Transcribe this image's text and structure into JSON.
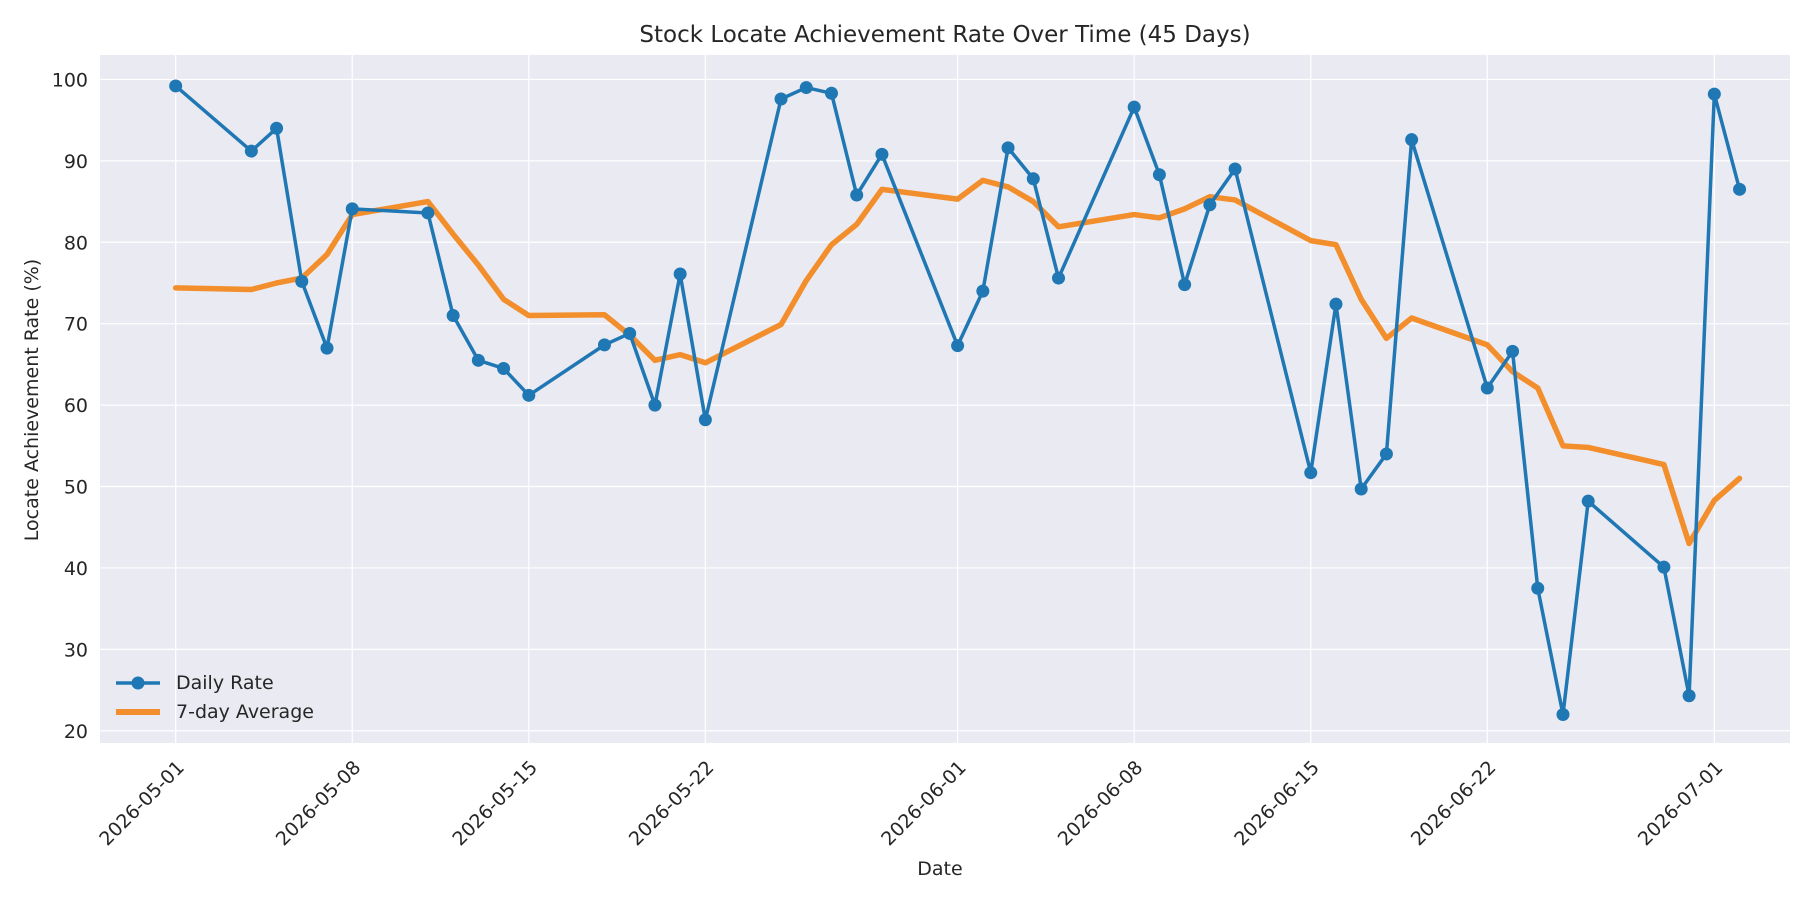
{
  "chart_data": {
    "type": "line",
    "title": "Stock Locate Achievement Rate Over Time (45 Days)",
    "xlabel": "Date",
    "ylabel": "Locate Achievement Rate (%)",
    "xlim": [
      "2026-04-28",
      "2026-07-04"
    ],
    "ylim": [
      18.5,
      103
    ],
    "grid": true,
    "legend_position": "lower-left",
    "x_ticks": [
      "2026-05-01",
      "2026-05-08",
      "2026-05-15",
      "2026-05-22",
      "2026-06-01",
      "2026-06-08",
      "2026-06-15",
      "2026-06-22",
      "2026-07-01"
    ],
    "y_ticks": [
      20,
      30,
      40,
      50,
      60,
      70,
      80,
      90,
      100
    ],
    "x": [
      "2026-05-01",
      "2026-05-04",
      "2026-05-05",
      "2026-05-06",
      "2026-05-07",
      "2026-05-08",
      "2026-05-11",
      "2026-05-12",
      "2026-05-13",
      "2026-05-14",
      "2026-05-15",
      "2026-05-18",
      "2026-05-19",
      "2026-05-20",
      "2026-05-21",
      "2026-05-22",
      "2026-05-25",
      "2026-05-26",
      "2026-05-27",
      "2026-05-28",
      "2026-05-29",
      "2026-06-01",
      "2026-06-02",
      "2026-06-03",
      "2026-06-04",
      "2026-06-05",
      "2026-06-08",
      "2026-06-09",
      "2026-06-10",
      "2026-06-11",
      "2026-06-12",
      "2026-06-15",
      "2026-06-16",
      "2026-06-17",
      "2026-06-18",
      "2026-06-19",
      "2026-06-22",
      "2026-06-23",
      "2026-06-24",
      "2026-06-25",
      "2026-06-26",
      "2026-06-29",
      "2026-06-30",
      "2026-07-01",
      "2026-07-02"
    ],
    "series": [
      {
        "name": "Daily Rate",
        "color": "#1f77b4",
        "values": [
          99.2,
          91.2,
          94.0,
          75.2,
          67.0,
          84.1,
          83.6,
          71.0,
          65.5,
          64.5,
          61.2,
          67.4,
          68.8,
          60.0,
          76.1,
          58.2,
          97.6,
          99.0,
          98.3,
          85.8,
          90.8,
          67.3,
          74.0,
          91.6,
          87.8,
          75.6,
          96.6,
          88.3,
          74.8,
          84.6,
          89.0,
          51.7,
          72.4,
          49.7,
          54.0,
          92.6,
          62.1,
          66.6,
          37.5,
          22.0,
          48.2,
          40.1,
          24.3,
          98.2,
          86.5
        ]
      },
      {
        "name": "7-day Average",
        "color": "#f28e2b",
        "values": [
          74.4,
          74.2,
          75.0,
          75.6,
          78.5,
          83.4,
          85.0,
          81.0,
          77.2,
          73.0,
          71.0,
          71.1,
          68.6,
          65.5,
          66.2,
          65.2,
          69.9,
          75.3,
          79.7,
          82.2,
          86.5,
          85.3,
          87.6,
          86.8,
          85.0,
          81.9,
          83.4,
          83.0,
          84.1,
          85.6,
          85.2,
          80.2,
          79.7,
          73.0,
          68.2,
          70.7,
          67.4,
          64.1,
          62.1,
          55.0,
          54.8,
          52.7,
          43.0,
          48.3,
          51.0
        ]
      }
    ]
  }
}
